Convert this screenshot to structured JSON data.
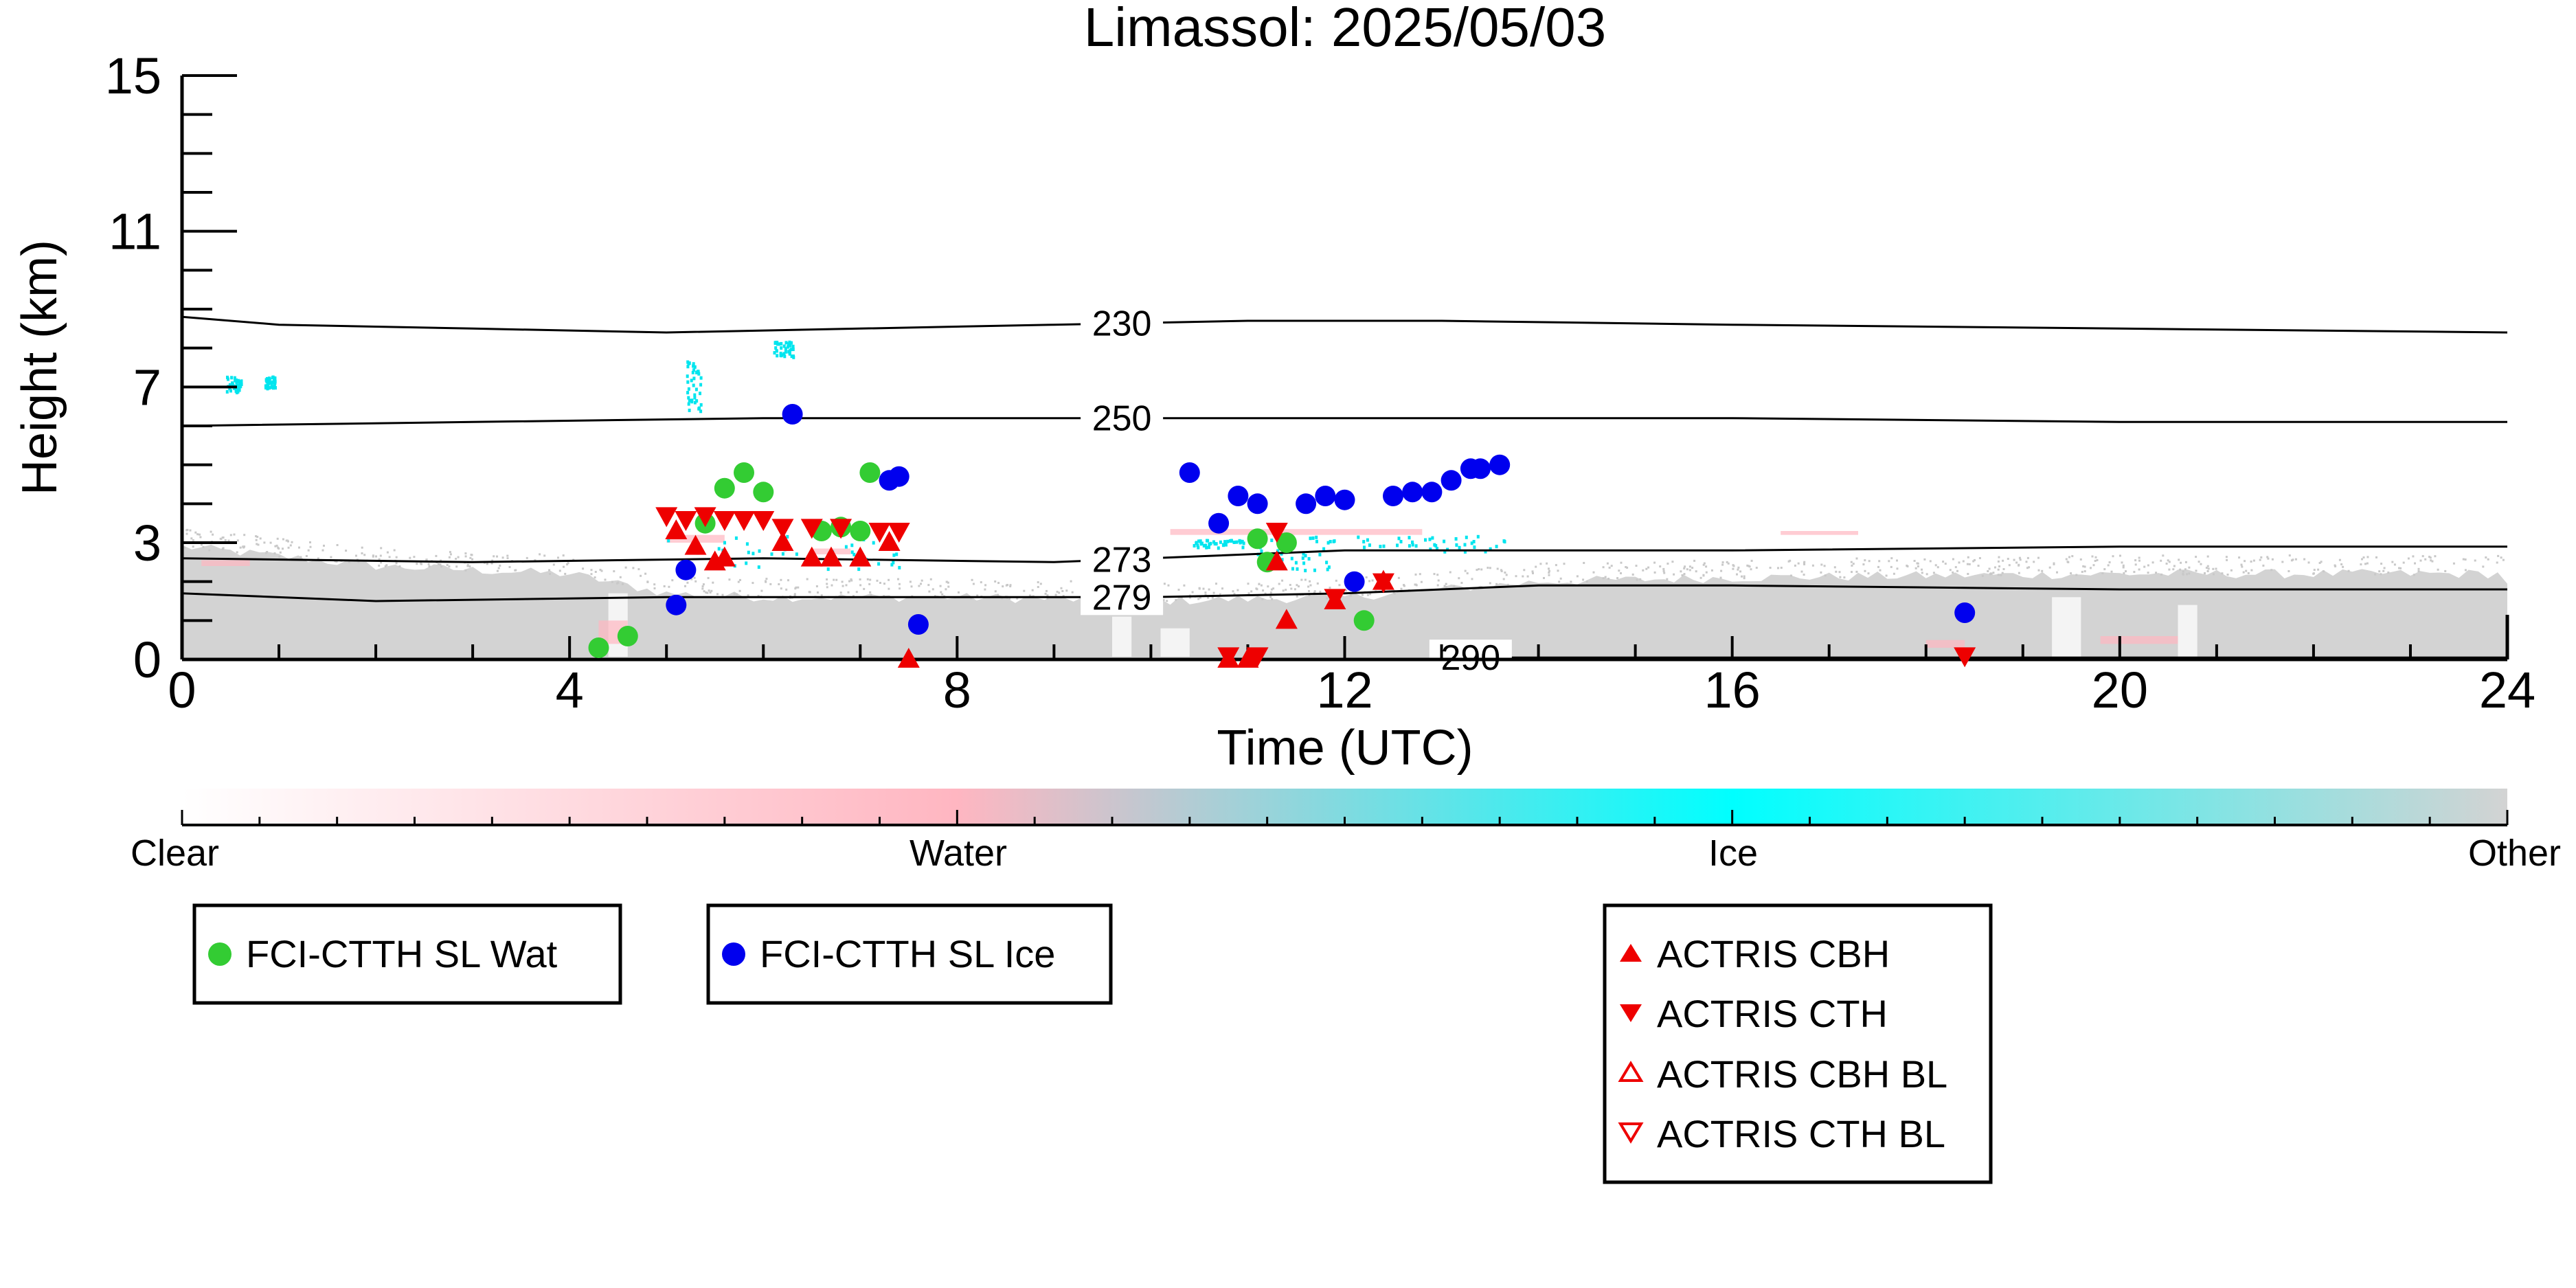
{
  "chart_data": {
    "type": "scatter",
    "title": "Limassol: 2025/05/03",
    "xlabel": "Time (UTC)",
    "ylabel": "Height (km)",
    "xlim": [
      0,
      24
    ],
    "ylim": [
      0,
      15
    ],
    "x_ticks": [
      0,
      4,
      8,
      12,
      16,
      20,
      24
    ],
    "y_ticks": [
      0,
      3,
      7,
      11,
      15
    ],
    "grid": false,
    "isotherms": [
      {
        "label": "230",
        "label_x": 9.7,
        "points": [
          [
            0,
            8.8
          ],
          [
            1,
            8.6
          ],
          [
            3,
            8.5
          ],
          [
            5,
            8.4
          ],
          [
            7,
            8.5
          ],
          [
            9,
            8.6
          ],
          [
            11,
            8.7
          ],
          [
            13,
            8.7
          ],
          [
            16,
            8.6
          ],
          [
            20,
            8.5
          ],
          [
            24,
            8.4
          ]
        ]
      },
      {
        "label": "250",
        "label_x": 9.7,
        "points": [
          [
            0,
            6.0
          ],
          [
            3,
            6.1
          ],
          [
            6,
            6.2
          ],
          [
            9,
            6.2
          ],
          [
            12,
            6.2
          ],
          [
            16,
            6.2
          ],
          [
            20,
            6.1
          ],
          [
            24,
            6.1
          ]
        ]
      },
      {
        "label": "273",
        "label_x": 9.7,
        "points": [
          [
            0,
            2.6
          ],
          [
            3,
            2.5
          ],
          [
            6,
            2.6
          ],
          [
            9,
            2.5
          ],
          [
            12,
            2.8
          ],
          [
            16,
            2.8
          ],
          [
            20,
            2.9
          ],
          [
            24,
            2.9
          ]
        ]
      },
      {
        "label": "279",
        "label_x": 9.7,
        "points": [
          [
            0,
            1.7
          ],
          [
            2,
            1.5
          ],
          [
            5,
            1.6
          ],
          [
            8,
            1.6
          ],
          [
            10,
            1.6
          ],
          [
            12,
            1.7
          ],
          [
            14,
            1.9
          ],
          [
            16,
            1.9
          ],
          [
            20,
            1.8
          ],
          [
            24,
            1.8
          ]
        ]
      },
      {
        "label": "290",
        "label_x": 13.3,
        "points": [
          [
            13,
            0.05
          ],
          [
            24,
            0.05
          ]
        ]
      }
    ],
    "colorbar": {
      "labels": [
        "Clear",
        "Water",
        "Ice",
        "Other"
      ],
      "colors": [
        "#ffffff",
        "#ffb6c1",
        "#00ffff",
        "#d3d3d3"
      ]
    },
    "series": [
      {
        "name": "FCI-CTTH SL Wat",
        "marker": "circle",
        "color": "#33cc33",
        "points": [
          [
            4.3,
            0.3
          ],
          [
            4.6,
            0.6
          ],
          [
            5.4,
            3.5
          ],
          [
            5.6,
            4.4
          ],
          [
            5.8,
            4.8
          ],
          [
            6.0,
            4.3
          ],
          [
            6.6,
            3.3
          ],
          [
            6.8,
            3.4
          ],
          [
            7.0,
            3.3
          ],
          [
            7.1,
            4.8
          ],
          [
            11.1,
            3.1
          ],
          [
            11.2,
            2.5
          ],
          [
            11.4,
            3.0
          ],
          [
            12.2,
            1.0
          ]
        ]
      },
      {
        "name": "FCI-CTTH SL Ice",
        "marker": "circle",
        "color": "#0000ee",
        "points": [
          [
            5.1,
            1.4
          ],
          [
            5.2,
            2.3
          ],
          [
            6.3,
            6.3
          ],
          [
            7.3,
            4.6
          ],
          [
            7.4,
            4.7
          ],
          [
            7.6,
            0.9
          ],
          [
            10.4,
            4.8
          ],
          [
            10.7,
            3.5
          ],
          [
            10.9,
            4.2
          ],
          [
            11.1,
            4.0
          ],
          [
            11.6,
            4.0
          ],
          [
            11.8,
            4.2
          ],
          [
            12.0,
            4.1
          ],
          [
            12.1,
            2.0
          ],
          [
            12.5,
            4.2
          ],
          [
            12.7,
            4.3
          ],
          [
            12.9,
            4.3
          ],
          [
            13.1,
            4.6
          ],
          [
            13.3,
            4.9
          ],
          [
            13.4,
            4.9
          ],
          [
            13.6,
            5.0
          ],
          [
            18.4,
            1.2
          ]
        ]
      },
      {
        "name": "ACTRIS CBH",
        "marker": "triangle-up",
        "color": "#ee0000",
        "points": [
          [
            5.1,
            3.3
          ],
          [
            5.3,
            2.9
          ],
          [
            5.5,
            2.5
          ],
          [
            5.6,
            2.6
          ],
          [
            6.2,
            3.0
          ],
          [
            6.5,
            2.6
          ],
          [
            6.7,
            2.6
          ],
          [
            7.0,
            2.6
          ],
          [
            7.3,
            3.0
          ],
          [
            7.5,
            0.0
          ],
          [
            10.8,
            0.0
          ],
          [
            11.0,
            0.0
          ],
          [
            11.3,
            2.5
          ],
          [
            11.4,
            1.0
          ],
          [
            11.9,
            1.5
          ],
          [
            12.4,
            2.0
          ]
        ]
      },
      {
        "name": "ACTRIS CTH",
        "marker": "triangle-down",
        "color": "#ee0000",
        "points": [
          [
            5.0,
            3.7
          ],
          [
            5.2,
            3.6
          ],
          [
            5.4,
            3.7
          ],
          [
            5.6,
            3.6
          ],
          [
            5.8,
            3.6
          ],
          [
            6.0,
            3.6
          ],
          [
            6.2,
            3.4
          ],
          [
            6.5,
            3.4
          ],
          [
            6.8,
            3.4
          ],
          [
            7.2,
            3.3
          ],
          [
            7.4,
            3.3
          ],
          [
            10.8,
            0.1
          ],
          [
            11.1,
            0.1
          ],
          [
            11.3,
            3.3
          ],
          [
            11.9,
            1.6
          ],
          [
            12.4,
            2.0
          ],
          [
            18.4,
            0.1
          ]
        ]
      },
      {
        "name": "ACTRIS CBH BL",
        "marker": "triangle-up-open",
        "color": "#ee0000",
        "points": []
      },
      {
        "name": "ACTRIS CTH BL",
        "marker": "triangle-down-open",
        "color": "#ee0000",
        "points": []
      }
    ]
  }
}
